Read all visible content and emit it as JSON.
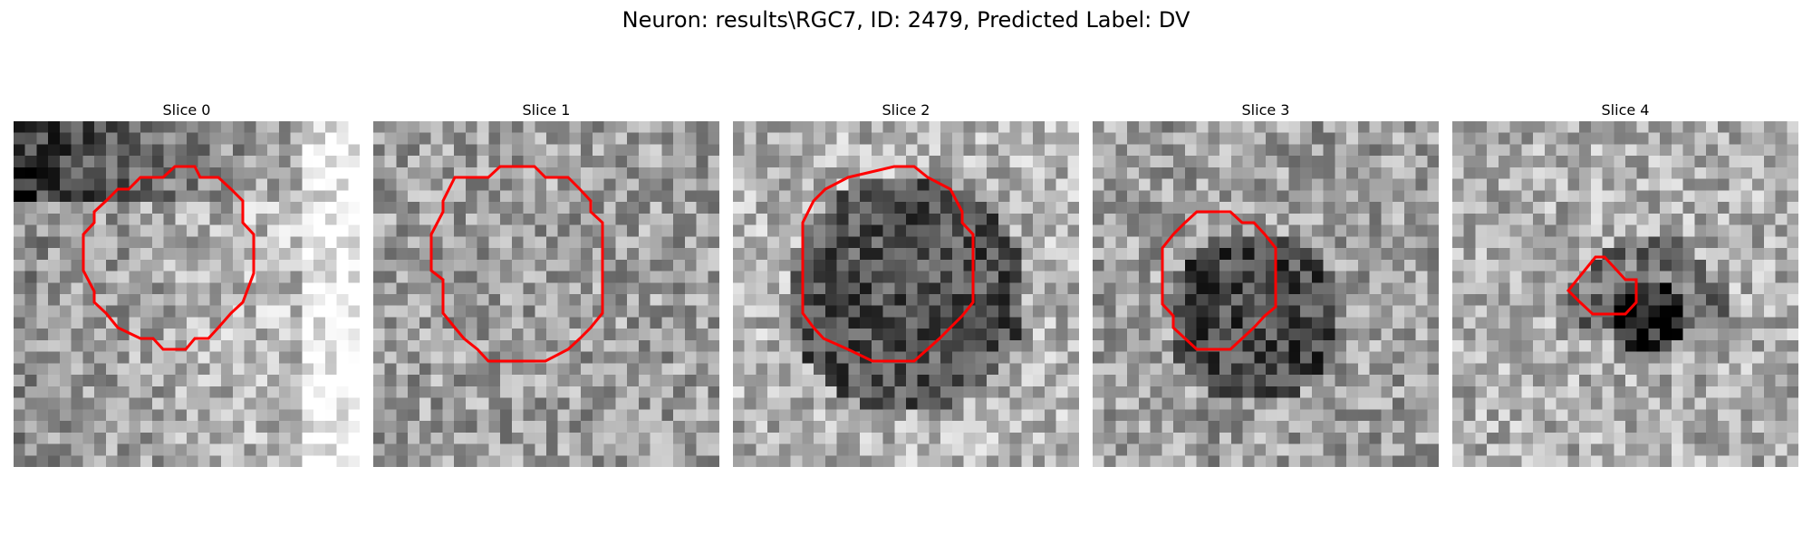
{
  "figure": {
    "title": "Neuron: results\\RGC7, ID: 2479, Predicted Label: DV"
  },
  "contour_color": "#ff0000",
  "panels": [
    {
      "title": "Slice 0",
      "style": "bright-right-dark-topleft",
      "seed": 11
    },
    {
      "title": "Slice 1",
      "style": "mottled",
      "seed": 23
    },
    {
      "title": "Slice 2",
      "style": "dark-center",
      "seed": 37
    },
    {
      "title": "Slice 3",
      "style": "dark-center-small",
      "seed": 41
    },
    {
      "title": "Slice 4",
      "style": "dark-spot",
      "seed": 53
    }
  ]
}
